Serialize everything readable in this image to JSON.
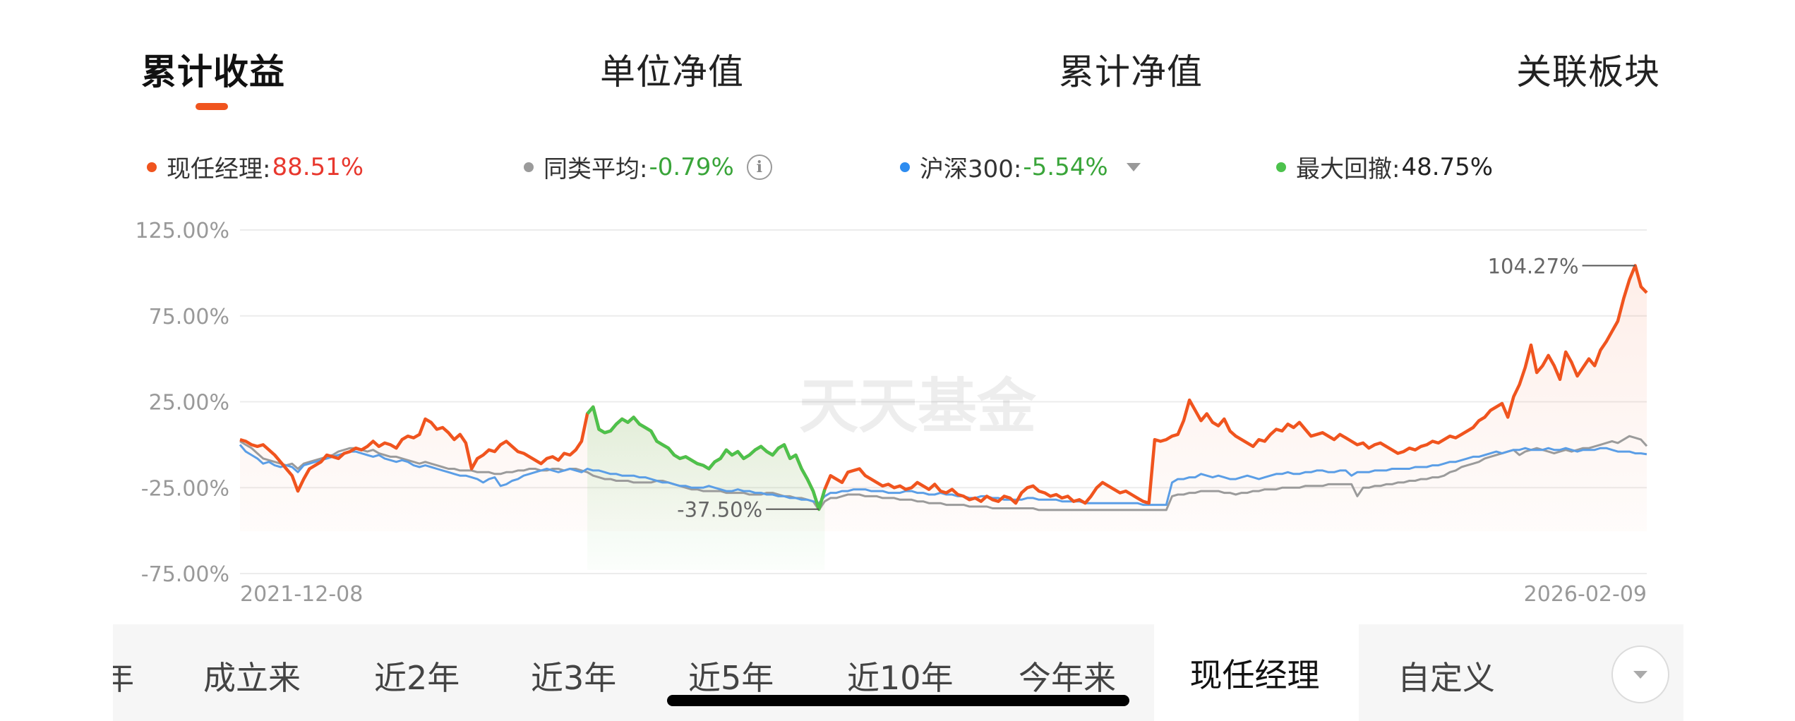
{
  "tabs": [
    {
      "label": "累计收益",
      "active": true
    },
    {
      "label": "单位净值",
      "active": false
    },
    {
      "label": "累计净值",
      "active": false
    },
    {
      "label": "关联板块",
      "active": false
    }
  ],
  "legend": {
    "manager": {
      "label": "现任经理:",
      "value": "88.51%",
      "dot_color": "#f0541e",
      "value_color": "#e8382e"
    },
    "peer_avg": {
      "label": "同类平均:",
      "value": "-0.79%",
      "dot_color": "#9b9b9b",
      "value_color": "#3aa53a"
    },
    "csi300": {
      "label": "沪深300:",
      "value": "-5.54%",
      "dot_color": "#2d8cf0",
      "value_color": "#3aa53a"
    },
    "max_drawdown": {
      "label": "最大回撤:",
      "value": "48.75%",
      "dot_color": "#4cc24c",
      "value_color": "#222222"
    }
  },
  "watermark": "天天基金",
  "chart_data": {
    "type": "line",
    "y_tick_labels": [
      "125.00%",
      "75.00%",
      "25.00%",
      "-25.00%",
      "-75.00%"
    ],
    "ylim": [
      -75,
      125
    ],
    "grid": true,
    "x_start_label": "2021-12-08",
    "x_end_label": "2026-02-09",
    "max_label": "104.27%",
    "min_label": "-37.50%",
    "drawdown": {
      "start_index": 60,
      "end_index": 101
    },
    "series": [
      {
        "key": "manager",
        "color": "#f0541e",
        "values": [
          3,
          2,
          0,
          -1,
          0,
          -3,
          -6,
          -10,
          -14,
          -18,
          -27,
          -20,
          -14,
          -12,
          -10,
          -6,
          -7,
          -8,
          -5,
          -4,
          -2,
          -3,
          -1,
          2,
          -1,
          1,
          0,
          -2,
          3,
          5,
          4,
          6,
          15,
          13,
          9,
          10,
          7,
          3,
          6,
          1,
          -14,
          -8,
          -6,
          -3,
          -4,
          0,
          2,
          -1,
          -4,
          -5,
          -7,
          -9,
          -11,
          -8,
          -7,
          -9,
          -5,
          -6,
          -3,
          2,
          18,
          22,
          9,
          7,
          8,
          12,
          15,
          13,
          16,
          12,
          10,
          8,
          2,
          0,
          -2,
          -6,
          -8,
          -7,
          -9,
          -11,
          -12,
          -14,
          -10,
          -8,
          -3,
          -6,
          -4,
          -8,
          -6,
          -3,
          -1,
          -4,
          -6,
          -2,
          0,
          -8,
          -6,
          -14,
          -20,
          -27,
          -37.5,
          -26,
          -18,
          -20,
          -22,
          -16,
          -15,
          -14,
          -18,
          -20,
          -22,
          -24,
          -23,
          -25,
          -24,
          -26,
          -25,
          -22,
          -24,
          -26,
          -23,
          -27,
          -28,
          -26,
          -29,
          -30,
          -32,
          -31,
          -33,
          -30,
          -32,
          -33,
          -30,
          -31,
          -34,
          -28,
          -25,
          -24,
          -27,
          -28,
          -30,
          -29,
          -31,
          -30,
          -33,
          -32,
          -34,
          -30,
          -25,
          -22,
          -24,
          -26,
          -28,
          -27,
          -29,
          -31,
          -33,
          -34,
          3,
          2,
          3,
          5,
          6,
          14,
          26,
          20,
          14,
          18,
          13,
          11,
          15,
          8,
          5,
          3,
          1,
          -1,
          3,
          2,
          6,
          9,
          8,
          12,
          10,
          13,
          9,
          5,
          6,
          7,
          5,
          3,
          6,
          4,
          2,
          0,
          1,
          -2,
          0,
          1,
          -1,
          -3,
          -5,
          -4,
          -2,
          -3,
          -1,
          0,
          2,
          1,
          3,
          5,
          4,
          6,
          8,
          10,
          14,
          16,
          20,
          22,
          24,
          16,
          28,
          35,
          45,
          58,
          42,
          46,
          52,
          46,
          38,
          54,
          48,
          40,
          45,
          50,
          46,
          55,
          60,
          66,
          72,
          85,
          96,
          104.27,
          92,
          88.51
        ]
      },
      {
        "key": "peer_avg",
        "color": "#9b9b9b",
        "values": [
          2,
          0,
          -2,
          -5,
          -8,
          -9,
          -10,
          -11,
          -12,
          -11,
          -14,
          -11,
          -10,
          -9,
          -8,
          -7,
          -6,
          -4,
          -3,
          -2,
          -2,
          -3,
          -4,
          -3,
          -5,
          -6,
          -7,
          -7,
          -8,
          -9,
          -10,
          -11,
          -10,
          -11,
          -12,
          -13,
          -14,
          -14,
          -15,
          -15,
          -15,
          -16,
          -16,
          -16,
          -17,
          -17,
          -16,
          -16,
          -15,
          -15,
          -14,
          -14,
          -15,
          -15,
          -14,
          -14,
          -15,
          -14,
          -14,
          -15,
          -16,
          -18,
          -19,
          -20,
          -20,
          -21,
          -21,
          -21,
          -22,
          -22,
          -22,
          -22,
          -21,
          -21,
          -22,
          -23,
          -24,
          -25,
          -26,
          -26,
          -27,
          -27,
          -27,
          -27,
          -28,
          -28,
          -28,
          -28,
          -29,
          -29,
          -29,
          -28,
          -28,
          -29,
          -30,
          -30,
          -31,
          -31,
          -32,
          -33,
          -38,
          -33,
          -31,
          -31,
          -30,
          -29,
          -29,
          -29,
          -30,
          -30,
          -30,
          -31,
          -31,
          -31,
          -32,
          -32,
          -32,
          -33,
          -33,
          -34,
          -34,
          -34,
          -35,
          -35,
          -35,
          -35,
          -36,
          -36,
          -36,
          -36,
          -37,
          -37,
          -37,
          -37,
          -37,
          -37,
          -37,
          -37,
          -38,
          -38,
          -38,
          -38,
          -38,
          -38,
          -38,
          -38,
          -38,
          -38,
          -38,
          -38,
          -38,
          -38,
          -38,
          -38,
          -38,
          -38,
          -38,
          -38,
          -38,
          -38,
          -38,
          -30,
          -29,
          -29,
          -28,
          -28,
          -27,
          -27,
          -27,
          -27,
          -28,
          -28,
          -29,
          -28,
          -28,
          -27,
          -27,
          -26,
          -26,
          -26,
          -25,
          -25,
          -25,
          -25,
          -24,
          -24,
          -24,
          -24,
          -23,
          -23,
          -23,
          -23,
          -23,
          -30,
          -25,
          -25,
          -24,
          -24,
          -23,
          -23,
          -22,
          -22,
          -21,
          -21,
          -20,
          -20,
          -19,
          -19,
          -18,
          -16,
          -15,
          -13,
          -12,
          -11,
          -10,
          -8,
          -7,
          -6,
          -5,
          -4,
          -3,
          -6,
          -4,
          -3,
          -2,
          -3,
          -4,
          -5,
          -4,
          -3,
          -4,
          -3,
          -2,
          -2,
          -1,
          0,
          1,
          2,
          1,
          3,
          5,
          4,
          3,
          -0.79
        ]
      },
      {
        "key": "csi300",
        "color": "#5b9ee6",
        "values": [
          0,
          -4,
          -6,
          -8,
          -11,
          -10,
          -12,
          -13,
          -12,
          -13,
          -16,
          -12,
          -11,
          -10,
          -9,
          -8,
          -7,
          -6,
          -5,
          -4,
          -4,
          -5,
          -6,
          -7,
          -6,
          -8,
          -9,
          -10,
          -9,
          -10,
          -12,
          -13,
          -12,
          -13,
          -14,
          -15,
          -16,
          -17,
          -18,
          -18,
          -19,
          -20,
          -22,
          -20,
          -19,
          -24,
          -23,
          -21,
          -20,
          -18,
          -17,
          -16,
          -15,
          -14,
          -15,
          -16,
          -15,
          -14,
          -15,
          -16,
          -14,
          -15,
          -15,
          -16,
          -17,
          -17,
          -18,
          -18,
          -18,
          -19,
          -19,
          -20,
          -21,
          -22,
          -22,
          -23,
          -24,
          -24,
          -25,
          -25,
          -25,
          -24,
          -25,
          -26,
          -27,
          -27,
          -26,
          -27,
          -27,
          -28,
          -28,
          -29,
          -29,
          -30,
          -30,
          -31,
          -31,
          -32,
          -32,
          -33,
          -34,
          -30,
          -28,
          -28,
          -27,
          -27,
          -26,
          -26,
          -26,
          -27,
          -27,
          -27,
          -28,
          -28,
          -28,
          -27,
          -27,
          -28,
          -28,
          -29,
          -29,
          -28,
          -29,
          -29,
          -30,
          -30,
          -31,
          -31,
          -30,
          -30,
          -31,
          -31,
          -32,
          -32,
          -32,
          -32,
          -31,
          -31,
          -32,
          -32,
          -32,
          -32,
          -33,
          -33,
          -33,
          -33,
          -34,
          -34,
          -34,
          -34,
          -34,
          -34,
          -34,
          -34,
          -34,
          -34,
          -35,
          -35,
          -35,
          -35,
          -35,
          -22,
          -20,
          -20,
          -19,
          -19,
          -17,
          -18,
          -19,
          -18,
          -19,
          -20,
          -20,
          -19,
          -18,
          -19,
          -20,
          -19,
          -18,
          -17,
          -17,
          -16,
          -17,
          -17,
          -16,
          -16,
          -15,
          -15,
          -16,
          -16,
          -15,
          -15,
          -18,
          -16,
          -16,
          -16,
          -15,
          -15,
          -15,
          -14,
          -14,
          -14,
          -14,
          -13,
          -13,
          -13,
          -12,
          -12,
          -11,
          -10,
          -10,
          -9,
          -8,
          -7,
          -7,
          -6,
          -5,
          -4,
          -5,
          -4,
          -3,
          -3,
          -2,
          -3,
          -3,
          -3,
          -2,
          -3,
          -3,
          -2,
          -3,
          -4,
          -3,
          -3,
          -3,
          -2,
          -2,
          -3,
          -4,
          -4,
          -4,
          -5,
          -5,
          -5.54
        ]
      }
    ]
  },
  "periods": [
    "年",
    "成立来",
    "近2年",
    "近3年",
    "近5年",
    "近10年",
    "今年来"
  ],
  "manager_button": "现任经理",
  "custom_button": "自定义"
}
